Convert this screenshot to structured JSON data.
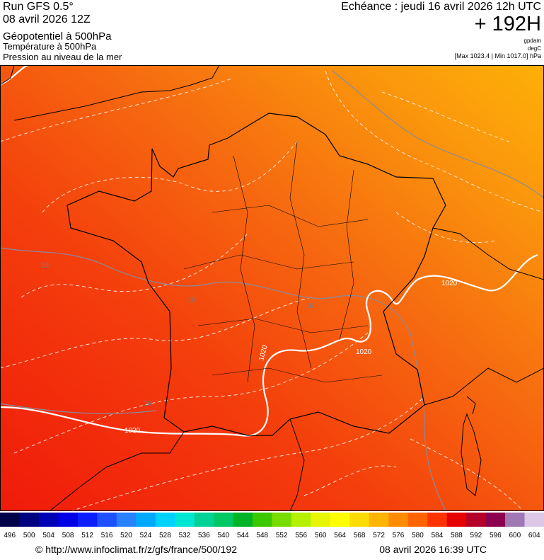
{
  "header": {
    "run": "Run GFS 0.5°",
    "date": "08 avril 2026 12Z",
    "title": "Géopotentiel à 500hPa",
    "subtitle1": "Température à 500hPa",
    "subtitle2": "Pression au niveau de la mer",
    "echeance": "Echéance : jeudi 16 avril 2026 12h UTC",
    "lead": "+ 192H",
    "unit1": "gpdam",
    "unit2": "degC",
    "range": "[Max 1023.4 | Min 1017.0] hPa"
  },
  "map": {
    "labels": [
      "1020",
      "1020",
      "1020",
      "1020",
      "16",
      "16",
      "16",
      "16"
    ]
  },
  "colorbar": {
    "ticks": [
      496,
      500,
      504,
      508,
      512,
      516,
      520,
      524,
      528,
      532,
      536,
      540,
      544,
      548,
      552,
      556,
      560,
      564,
      568,
      572,
      576,
      580,
      584,
      588,
      592,
      596,
      600,
      604
    ],
    "colors": [
      "#00004b",
      "#000080",
      "#0000b4",
      "#0000e6",
      "#0a1eff",
      "#1e50ff",
      "#2882ff",
      "#00a8ff",
      "#00d2ff",
      "#00e6d2",
      "#00d296",
      "#00c864",
      "#00b428",
      "#3cc800",
      "#78dc00",
      "#b4f000",
      "#e6f500",
      "#ffff00",
      "#ffdc00",
      "#ffb400",
      "#ff8c00",
      "#ff6400",
      "#ff3200",
      "#e60000",
      "#b40028",
      "#8c0050",
      "#a078b4",
      "#dcc8e6"
    ]
  },
  "footer": {
    "url": "© http://www.infoclimat.fr/z/gfs/france/500/192",
    "time": "08 avril 2026 16:39 UTC"
  }
}
